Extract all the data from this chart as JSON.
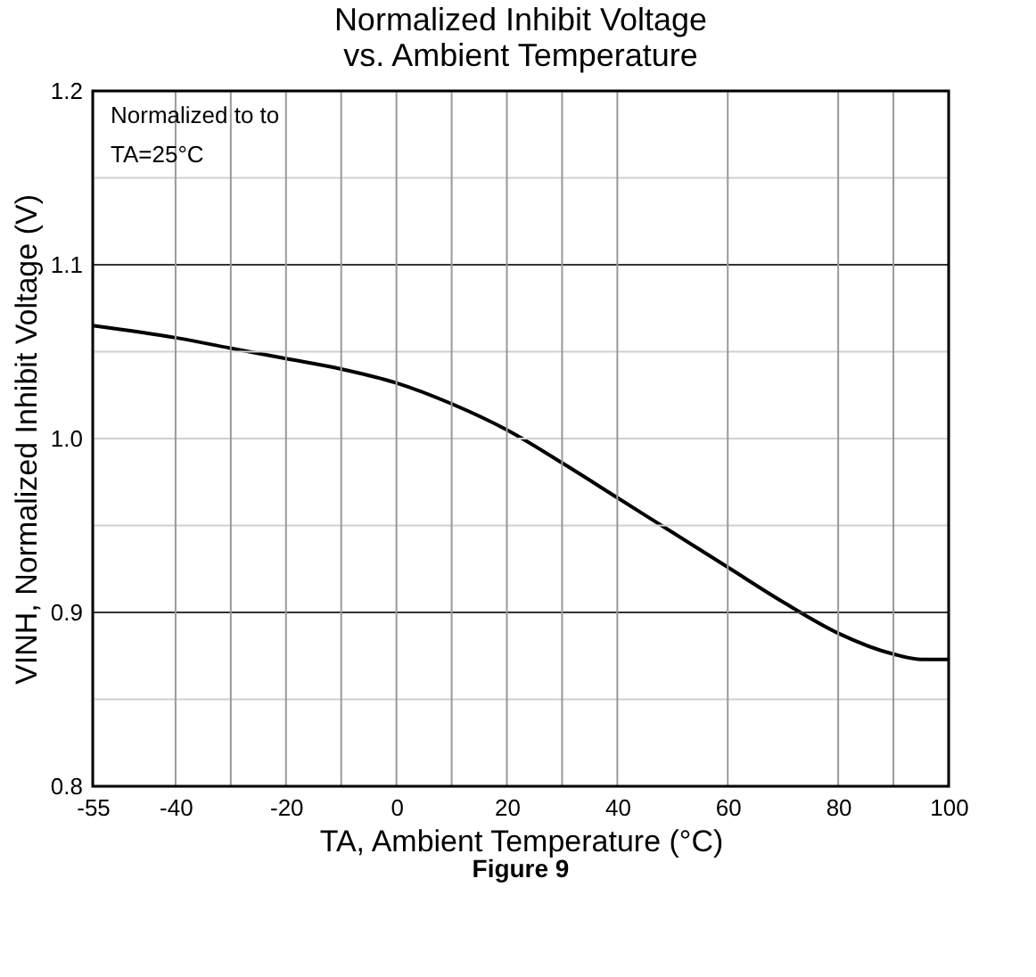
{
  "chart_data": {
    "type": "line",
    "title": "Normalized Inhibit Voltage\nvs. Ambient Temperature",
    "xlabel": "TA, Ambient Temperature (°C)",
    "ylabel": "VINH, Normalized Inhibit Voltage (V)",
    "annotations": [
      "Normalized to to\nTA=25°C",
      "Figure 9"
    ],
    "x": [
      -55,
      -40,
      -30,
      -20,
      -10,
      0,
      10,
      20,
      30,
      40,
      50,
      60,
      70,
      80,
      90,
      95,
      100
    ],
    "series": [
      {
        "color": "#000000",
        "values": [
          1.065,
          1.058,
          1.052,
          1.046,
          1.04,
          1.032,
          1.02,
          1.005,
          0.986,
          0.966,
          0.946,
          0.926,
          0.906,
          0.888,
          0.876,
          0.873,
          0.873
        ]
      }
    ],
    "xlim": [
      -55,
      100
    ],
    "xticks": [
      -55,
      -40,
      {
        "value": -30,
        "label": null
      },
      -20,
      {
        "value": -10,
        "label": null
      },
      0,
      {
        "value": 10,
        "label": null
      },
      20,
      {
        "value": 30,
        "label": null
      },
      40,
      60,
      80,
      {
        "value": 90,
        "label": null
      },
      100
    ],
    "ylim": [
      0.8,
      1.2
    ],
    "yticks": [
      0.8,
      {
        "value": 0.85,
        "label": null
      },
      0.9,
      {
        "value": 0.95,
        "label": null
      },
      {
        "value": 1.0,
        "label": "1.0"
      },
      {
        "value": 1.05,
        "label": null
      },
      1.1,
      {
        "value": 1.15,
        "label": null
      },
      1.2
    ],
    "grid": true,
    "marker": "none",
    "line_style": "solid"
  }
}
